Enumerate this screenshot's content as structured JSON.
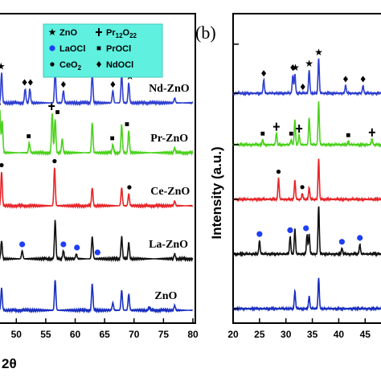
{
  "chart_data": [
    {
      "type": "line",
      "panel": "a",
      "xlabel": "2θ",
      "ylabel": "",
      "xlim": [
        46,
        80
      ],
      "x_ticks": [
        50,
        55,
        60,
        65,
        70,
        75,
        80
      ],
      "legend": {
        "placement": "top-left",
        "entries": [
          {
            "marker": "star",
            "label_main": "ZnO",
            "label_sub": ""
          },
          {
            "marker": "cross",
            "label_main": "Pr",
            "label_sub": "12",
            "label_mid": "O",
            "label_sub2": "22"
          },
          {
            "marker": "blue-circle",
            "label_main": "LaOCl",
            "label_sub": ""
          },
          {
            "marker": "square",
            "label_main": "PrOCl",
            "label_sub": ""
          },
          {
            "marker": "circle",
            "label_main": "CeO",
            "label_sub": "2"
          },
          {
            "marker": "diamond",
            "label_main": "NdOCl",
            "label_sub": ""
          }
        ]
      },
      "series": [
        {
          "name": "ZnO",
          "color": "#1a2fbf",
          "label_x": 73.5,
          "peaks": [
            [
              47.5,
              0.55
            ],
            [
              56.6,
              0.75
            ],
            [
              62.9,
              0.65
            ],
            [
              66.4,
              0.18
            ],
            [
              67.9,
              0.5
            ],
            [
              69.1,
              0.4
            ],
            [
              72.6,
              0.08
            ],
            [
              76.9,
              0.12
            ]
          ],
          "markers": []
        },
        {
          "name": "La-ZnO",
          "color": "#111111",
          "label_x": 72.5,
          "peaks": [
            [
              47.5,
              0.45
            ],
            [
              51.0,
              0.2
            ],
            [
              56.6,
              0.95
            ],
            [
              58.0,
              0.2
            ],
            [
              60.2,
              0.12
            ],
            [
              62.9,
              0.55
            ],
            [
              67.9,
              0.55
            ],
            [
              69.1,
              0.4
            ],
            [
              76.9,
              0.12
            ]
          ],
          "markers": [
            {
              "x": 51.0,
              "type": "blue-circle"
            },
            {
              "x": 58.0,
              "type": "blue-circle"
            },
            {
              "x": 60.3,
              "type": "blue-circle"
            },
            {
              "x": 63.8,
              "type": "blue-circle"
            }
          ]
        },
        {
          "name": "Ce-ZnO",
          "color": "#e8262a",
          "label_x": 72.8,
          "peaks": [
            [
              47.5,
              0.85
            ],
            [
              56.5,
              0.95
            ],
            [
              62.9,
              0.45
            ],
            [
              67.9,
              0.45
            ],
            [
              69.1,
              0.3
            ],
            [
              76.9,
              0.12
            ]
          ],
          "markers": [
            {
              "x": 47.5,
              "type": "circle"
            },
            {
              "x": 56.5,
              "type": "circle"
            },
            {
              "x": 69.2,
              "type": "circle"
            }
          ]
        },
        {
          "name": "Pr-ZnO",
          "color": "#4cd21e",
          "label_x": 72.8,
          "peaks": [
            [
              47.2,
              1.05
            ],
            [
              47.6,
              0.8
            ],
            [
              52.2,
              0.25
            ],
            [
              56.1,
              1.0
            ],
            [
              56.6,
              0.85
            ],
            [
              57.8,
              0.35
            ],
            [
              62.9,
              0.75
            ],
            [
              66.4,
              0.2
            ],
            [
              67.9,
              0.7
            ],
            [
              69.1,
              0.55
            ],
            [
              76.9,
              0.12
            ]
          ],
          "markers": [
            {
              "x": 46.8,
              "type": "cross"
            },
            {
              "x": 52.1,
              "type": "square"
            },
            {
              "x": 56.0,
              "type": "cross"
            },
            {
              "x": 57.0,
              "type": "square"
            },
            {
              "x": 66.3,
              "type": "square"
            },
            {
              "x": 68.8,
              "type": "square"
            }
          ]
        },
        {
          "name": "Nd-ZnO",
          "color": "#2f3fd0",
          "label_x": 72.5,
          "peaks": [
            [
              47.5,
              0.75
            ],
            [
              51.5,
              0.35
            ],
            [
              52.3,
              0.35
            ],
            [
              56.6,
              0.8
            ],
            [
              58.0,
              0.3
            ],
            [
              62.9,
              0.75
            ],
            [
              66.4,
              0.3
            ],
            [
              67.9,
              0.75
            ],
            [
              69.1,
              0.5
            ],
            [
              76.9,
              0.12
            ]
          ],
          "markers": [
            {
              "x": 47.4,
              "type": "star"
            },
            {
              "x": 51.4,
              "type": "diamond"
            },
            {
              "x": 52.4,
              "type": "diamond"
            },
            {
              "x": 56.6,
              "type": "star"
            },
            {
              "x": 58.0,
              "type": "diamond"
            },
            {
              "x": 62.9,
              "type": "star"
            },
            {
              "x": 66.4,
              "type": "diamond"
            },
            {
              "x": 67.9,
              "type": "star"
            },
            {
              "x": 69.3,
              "type": "star"
            }
          ]
        }
      ]
    },
    {
      "type": "line",
      "panel": "b",
      "panel_label": "(b)",
      "xlabel": "",
      "ylabel": "Intensity (a.u.)",
      "xlim": [
        20,
        48
      ],
      "x_ticks": [
        20,
        25,
        30,
        35,
        40,
        45
      ],
      "series": [
        {
          "name": "ZnO",
          "color": "#1a2fbf",
          "peaks": [
            [
              31.7,
              0.45
            ],
            [
              34.4,
              0.32
            ],
            [
              36.2,
              0.8
            ]
          ],
          "markers": []
        },
        {
          "name": "La-ZnO",
          "color": "#111111",
          "peaks": [
            [
              25.0,
              0.35
            ],
            [
              30.8,
              0.45
            ],
            [
              31.7,
              0.65
            ],
            [
              34.0,
              0.5
            ],
            [
              34.4,
              0.5
            ],
            [
              36.2,
              1.25
            ],
            [
              40.6,
              0.15
            ],
            [
              44.0,
              0.25
            ]
          ],
          "markers": [
            {
              "x": 25.0,
              "type": "blue-circle"
            },
            {
              "x": 30.8,
              "type": "blue-circle"
            },
            {
              "x": 33.8,
              "type": "blue-circle"
            },
            {
              "x": 40.6,
              "type": "blue-circle"
            },
            {
              "x": 44.0,
              "type": "blue-circle"
            }
          ]
        },
        {
          "name": "Ce-ZnO",
          "color": "#e8262a",
          "peaks": [
            [
              28.6,
              0.55
            ],
            [
              31.7,
              0.5
            ],
            [
              33.1,
              0.15
            ],
            [
              34.4,
              0.3
            ],
            [
              36.2,
              1.05
            ]
          ],
          "markers": [
            {
              "x": 28.6,
              "type": "circle"
            },
            {
              "x": 33.1,
              "type": "circle"
            }
          ]
        },
        {
          "name": "Pr-ZnO",
          "color": "#4cd21e",
          "peaks": [
            [
              25.6,
              0.12
            ],
            [
              28.2,
              0.3
            ],
            [
              31.0,
              0.12
            ],
            [
              31.7,
              0.65
            ],
            [
              32.5,
              0.25
            ],
            [
              34.4,
              0.7
            ],
            [
              36.2,
              1.1
            ],
            [
              41.8,
              0.08
            ],
            [
              46.3,
              0.15
            ]
          ],
          "markers": [
            {
              "x": 25.6,
              "type": "square"
            },
            {
              "x": 28.2,
              "type": "cross"
            },
            {
              "x": 31.0,
              "type": "square"
            },
            {
              "x": 32.5,
              "type": "cross"
            },
            {
              "x": 41.8,
              "type": "square"
            },
            {
              "x": 46.3,
              "type": "cross"
            }
          ]
        },
        {
          "name": "Nd-ZnO",
          "color": "#2f3fd0",
          "peaks": [
            [
              25.8,
              0.35
            ],
            [
              31.3,
              0.45
            ],
            [
              31.7,
              0.5
            ],
            [
              34.4,
              0.6
            ],
            [
              36.2,
              0.9
            ],
            [
              41.3,
              0.2
            ],
            [
              44.6,
              0.2
            ]
          ],
          "markers": [
            {
              "x": 25.8,
              "type": "diamond"
            },
            {
              "x": 31.3,
              "type": "diamond"
            },
            {
              "x": 31.8,
              "type": "star"
            },
            {
              "x": 33.2,
              "type": "diamond"
            },
            {
              "x": 34.4,
              "type": "star"
            },
            {
              "x": 36.2,
              "type": "star"
            },
            {
              "x": 41.3,
              "type": "diamond"
            },
            {
              "x": 44.6,
              "type": "diamond"
            }
          ]
        }
      ]
    }
  ]
}
